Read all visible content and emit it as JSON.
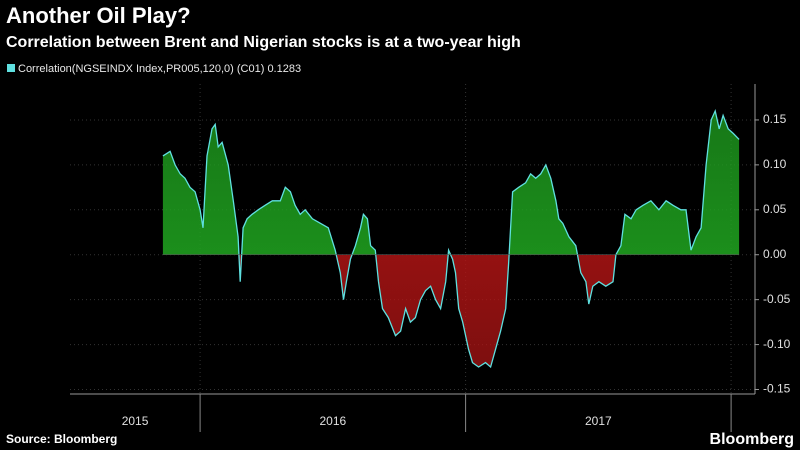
{
  "chart_data": {
    "type": "area",
    "title": "Another Oil Play?",
    "subtitle": "Correlation between Brent and Nigerian stocks is at a two-year high",
    "source": "Source: Bloomberg",
    "brand": "Bloomberg",
    "xlim": [
      2015.51,
      2018.09
    ],
    "xticks": [
      {
        "value": 2015.5,
        "label": "2015"
      },
      {
        "value": 2016.5,
        "label": "2016"
      },
      {
        "value": 2017.5,
        "label": "2017"
      }
    ],
    "ylim": [
      -0.155,
      0.19
    ],
    "yticks": [
      {
        "value": -0.15,
        "label": "-0.15"
      },
      {
        "value": -0.1,
        "label": "-0.10"
      },
      {
        "value": -0.05,
        "label": "-0.05"
      },
      {
        "value": 0,
        "label": "0.00"
      },
      {
        "value": 0.05,
        "label": "0.05"
      },
      {
        "value": 0.1,
        "label": "0.10"
      },
      {
        "value": 0.15,
        "label": "0.15"
      }
    ],
    "grid": true,
    "axis_side": "right",
    "positive_fill": "#1fa01f",
    "negative_fill": "#b31515",
    "series": [
      {
        "name": "Correlation(NGSEINDX Index,PR005,120,0) (C01) 0.1283",
        "color": "#5fe0e0",
        "x": [
          2015.86,
          2015.887,
          2015.906,
          2015.925,
          2015.943,
          2015.962,
          2015.981,
          2016.0,
          2016.011,
          2016.026,
          2016.045,
          2016.057,
          2016.068,
          2016.083,
          2016.106,
          2016.125,
          2016.143,
          2016.151,
          2016.162,
          2016.177,
          2016.196,
          2016.219,
          2016.245,
          2016.272,
          2016.302,
          2016.321,
          2016.34,
          2016.358,
          2016.377,
          2016.396,
          2016.423,
          2016.453,
          2016.483,
          2016.509,
          2016.528,
          2016.54,
          2016.551,
          2016.566,
          2016.585,
          2016.604,
          2016.615,
          2016.63,
          2016.642,
          2016.66,
          2016.672,
          2016.687,
          2016.709,
          2016.736,
          2016.755,
          2016.774,
          2016.792,
          2016.811,
          2016.83,
          2016.849,
          2016.868,
          2016.887,
          2016.906,
          2016.925,
          2016.936,
          2016.951,
          2016.962,
          2016.974,
          2016.989,
          2017.011,
          2017.026,
          2017.049,
          2017.075,
          2017.094,
          2017.113,
          2017.132,
          2017.151,
          2017.162,
          2017.177,
          2017.2,
          2017.226,
          2017.245,
          2017.264,
          2017.283,
          2017.302,
          2017.321,
          2017.34,
          2017.351,
          2017.366,
          2017.389,
          2017.415,
          2017.434,
          2017.453,
          2017.464,
          2017.479,
          2017.502,
          2017.528,
          2017.555,
          2017.566,
          2017.585,
          2017.6,
          2017.623,
          2017.642,
          2017.668,
          2017.698,
          2017.728,
          2017.755,
          2017.781,
          2017.811,
          2017.83,
          2017.849,
          2017.868,
          2017.887,
          2017.906,
          2017.925,
          2017.94,
          2017.955,
          2017.97,
          2017.989,
          2018.008,
          2018.03
        ],
        "values": [
          0.11,
          0.115,
          0.1,
          0.09,
          0.085,
          0.075,
          0.07,
          0.05,
          0.03,
          0.11,
          0.14,
          0.145,
          0.12,
          0.125,
          0.1,
          0.06,
          0.02,
          -0.03,
          0.03,
          0.04,
          0.045,
          0.05,
          0.055,
          0.06,
          0.06,
          0.075,
          0.07,
          0.055,
          0.045,
          0.05,
          0.04,
          0.035,
          0.03,
          0.005,
          -0.02,
          -0.05,
          -0.03,
          -0.005,
          0.01,
          0.03,
          0.045,
          0.04,
          0.01,
          0.005,
          -0.03,
          -0.06,
          -0.07,
          -0.09,
          -0.085,
          -0.06,
          -0.075,
          -0.07,
          -0.05,
          -0.04,
          -0.035,
          -0.05,
          -0.06,
          -0.03,
          0.005,
          -0.005,
          -0.02,
          -0.06,
          -0.075,
          -0.105,
          -0.12,
          -0.125,
          -0.12,
          -0.125,
          -0.105,
          -0.085,
          -0.06,
          -0.01,
          0.07,
          0.075,
          0.08,
          0.09,
          0.085,
          0.09,
          0.1,
          0.085,
          0.06,
          0.04,
          0.035,
          0.02,
          0.01,
          -0.02,
          -0.03,
          -0.055,
          -0.035,
          -0.03,
          -0.035,
          -0.03,
          0.0,
          0.01,
          0.045,
          0.04,
          0.05,
          0.055,
          0.06,
          0.05,
          0.06,
          0.055,
          0.05,
          0.05,
          0.005,
          0.02,
          0.03,
          0.1,
          0.15,
          0.16,
          0.14,
          0.155,
          0.14,
          0.135,
          0.1283
        ]
      }
    ]
  }
}
